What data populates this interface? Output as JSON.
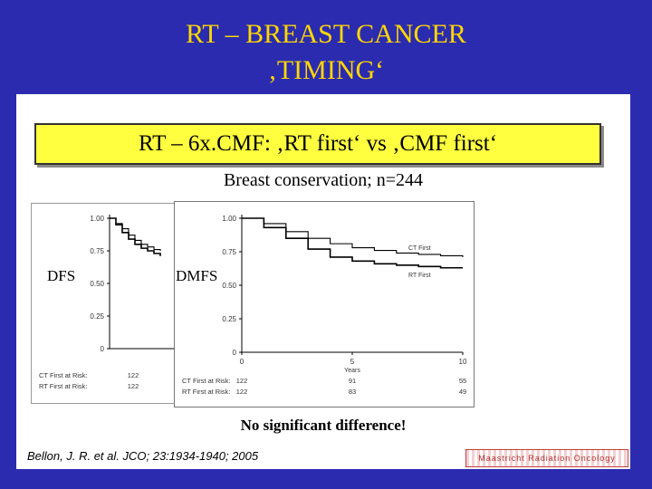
{
  "slide": {
    "title_line1": "RT – BREAST CANCER",
    "title_line2": "‚TIMING‘",
    "subtitle": "RT – 6x.CMF: ‚RT first‘ vs ‚CMF first‘",
    "caption": "Breast conservation; n=244",
    "conclusion": "No significant difference!",
    "citation": "Bellon, J. R. et al. JCO; 23:1934-1940; 2005",
    "logo_text": "Maastricht Radiation Oncology",
    "colors": {
      "background": "#2b2bb0",
      "title": "#ffd700",
      "box": "#ffff40"
    }
  },
  "chart_data": [
    {
      "type": "line",
      "name": "DFS",
      "ylabel": "DFS",
      "ylim": [
        0,
        1
      ],
      "yticks": [
        "1.00",
        "0.75",
        "0.50",
        "0.25",
        "0"
      ],
      "at_risk": [
        {
          "label": "CT First at Risk:",
          "values": [
            "122"
          ]
        },
        {
          "label": "RT First at Risk:",
          "values": [
            "122"
          ]
        }
      ],
      "series": [
        {
          "name": "CT First",
          "x": [
            0,
            0.5,
            1,
            1.5,
            2,
            2.5,
            3,
            3.5,
            4
          ],
          "y": [
            1.0,
            0.96,
            0.92,
            0.87,
            0.83,
            0.8,
            0.78,
            0.76,
            0.75
          ]
        },
        {
          "name": "RT First",
          "x": [
            0,
            0.5,
            1,
            1.5,
            2,
            2.5,
            3,
            3.5,
            4
          ],
          "y": [
            1.0,
            0.95,
            0.89,
            0.84,
            0.8,
            0.77,
            0.75,
            0.73,
            0.71
          ]
        }
      ]
    },
    {
      "type": "line",
      "name": "DMFS",
      "ylabel": "DMFS",
      "xlabel": "Years",
      "xlim": [
        0,
        10
      ],
      "ylim": [
        0,
        1
      ],
      "xticks": [
        "0",
        "5",
        "10"
      ],
      "yticks": [
        "1.00",
        "0.75",
        "0.50",
        "0.25",
        "0"
      ],
      "at_risk": [
        {
          "label": "CT First at Risk:",
          "values": [
            "122",
            "91",
            "55"
          ]
        },
        {
          "label": "RT First at Risk:",
          "values": [
            "122",
            "83",
            "49"
          ]
        }
      ],
      "series": [
        {
          "name": "CT First",
          "x": [
            0,
            1,
            2,
            3,
            4,
            5,
            6,
            7,
            8,
            9,
            10
          ],
          "y": [
            1.0,
            0.96,
            0.9,
            0.85,
            0.81,
            0.78,
            0.76,
            0.74,
            0.73,
            0.72,
            0.71
          ]
        },
        {
          "name": "RT First",
          "x": [
            0,
            1,
            2,
            3,
            4,
            5,
            6,
            7,
            8,
            9,
            10
          ],
          "y": [
            1.0,
            0.93,
            0.85,
            0.77,
            0.71,
            0.68,
            0.66,
            0.65,
            0.64,
            0.63,
            0.63
          ]
        }
      ]
    }
  ]
}
